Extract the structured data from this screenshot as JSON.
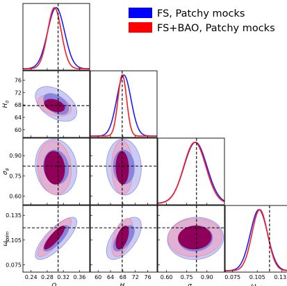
{
  "chart_data": {
    "type": "triangle",
    "parameters": [
      {
        "key": "Om",
        "label": "Ω",
        "sub": "m",
        "range": [
          0.22,
          0.385
        ],
        "ticks": [
          "0.24",
          "0.28",
          "0.32",
          "0.36"
        ],
        "tick_values": [
          0.24,
          0.28,
          0.32,
          0.36
        ],
        "truth": 0.307
      },
      {
        "key": "H0",
        "label": "H",
        "sub": "0",
        "range": [
          57.5,
          79
        ],
        "ticks": [
          "60",
          "64",
          "68",
          "72",
          "76"
        ],
        "tick_values": [
          60,
          64,
          68,
          72,
          76
        ],
        "truth": 67.77
      },
      {
        "key": "s8",
        "label": "σ",
        "sub": "8",
        "range": [
          0.535,
          1.03
        ],
        "ticks": [
          "0.60",
          "0.75",
          "0.90"
        ],
        "tick_values": [
          0.6,
          0.75,
          0.9
        ],
        "truth": 0.8225
      },
      {
        "key": "wcdm",
        "label": "ω",
        "sub": "cdm",
        "range": [
          0.066,
          0.147
        ],
        "ticks": [
          "0.075",
          "0.105",
          "0.135"
        ],
        "tick_values": [
          0.075,
          0.105,
          0.135
        ],
        "truth": 0.1199
      }
    ],
    "legend": {
      "position": "top-right",
      "entries": [
        {
          "label": "FS, Patchy mocks",
          "color": "#0000ff"
        },
        {
          "label": "FS+BAO, Patchy mocks",
          "color": "#ff0000"
        }
      ]
    },
    "series": [
      {
        "name": "FS, Patchy mocks",
        "line_color": "#1a1aff",
        "fill68": "#7f7fdd",
        "fill95": "#c2c2f2",
        "edge": "#8a8ae6",
        "mean": {
          "Om": 0.302,
          "H0": 68.3,
          "s8": 0.815,
          "wcdm": 0.107
        },
        "sigma": {
          "Om": 0.021,
          "H0": 2.3,
          "s8": 0.085,
          "wcdm": 0.0105
        },
        "corr": {
          "Om-H0": -0.45,
          "Om-s8": -0.1,
          "H0-s8": -0.05,
          "Om-wcdm": 0.78,
          "H0-wcdm": 0.6,
          "s8-wcdm": 0.05
        }
      },
      {
        "name": "FS+BAO, Patchy mocks",
        "line_color": "#ff1a1a",
        "fill68": "#8e005a",
        "fill95": "#e8a8c8",
        "edge": "#e28aa8",
        "mean": {
          "Om": 0.298,
          "H0": 67.8,
          "s8": 0.81,
          "wcdm": 0.108
        },
        "sigma": {
          "Om": 0.017,
          "H0": 1.4,
          "s8": 0.082,
          "wcdm": 0.0095
        },
        "corr": {
          "Om-H0": -0.35,
          "Om-s8": -0.1,
          "H0-s8": -0.05,
          "Om-wcdm": 0.85,
          "H0-wcdm": 0.5,
          "s8-wcdm": 0.05
        }
      }
    ]
  }
}
